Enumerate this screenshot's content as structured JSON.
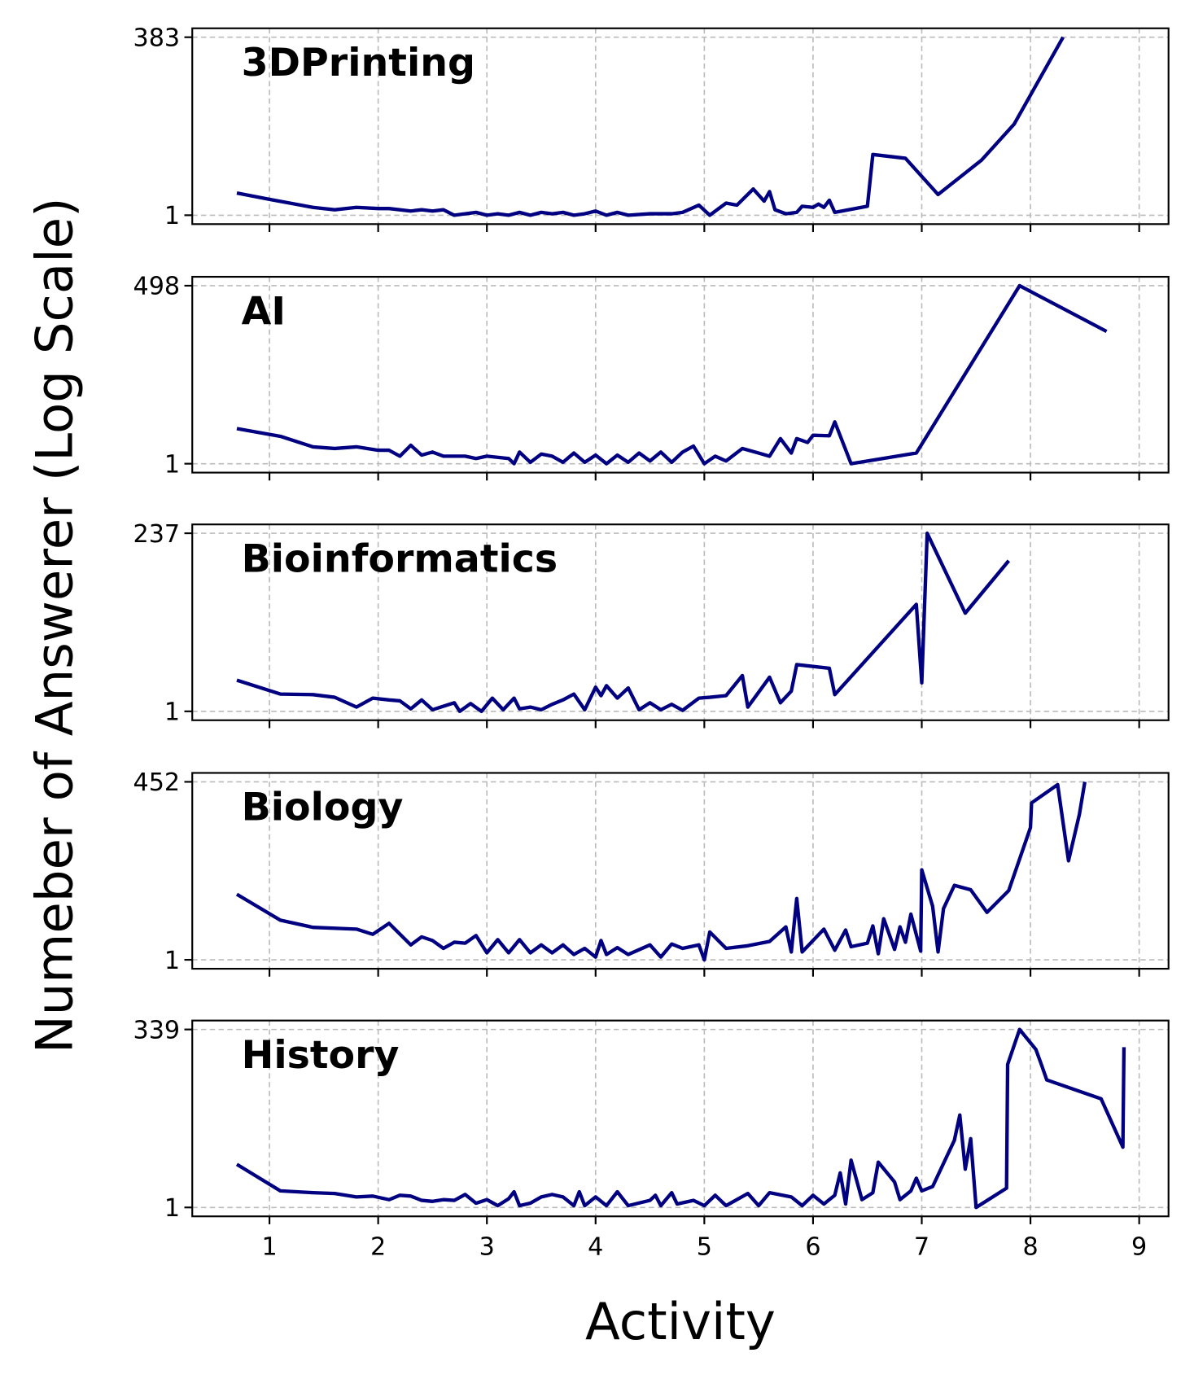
{
  "x_label": "Activity",
  "y_label": "Numeber of Answerer (Log Scale)",
  "chart_data": [
    {
      "type": "line",
      "title": "3DPrinting",
      "color": "#000080",
      "yscale": "log",
      "grid": true,
      "xlim": [
        0.29,
        9.27
      ],
      "ylim": [
        0.743,
        516
      ],
      "xticks": [
        1,
        2,
        3,
        4,
        5,
        6,
        7,
        8,
        9
      ],
      "yticks": [
        1,
        383
      ],
      "x": [
        0.7,
        1.0,
        1.4,
        1.6,
        1.8,
        2.0,
        2.1,
        2.3,
        2.4,
        2.5,
        2.6,
        2.7,
        2.8,
        2.9,
        3.0,
        3.1,
        3.2,
        3.3,
        3.4,
        3.5,
        3.6,
        3.7,
        3.8,
        3.9,
        4.0,
        4.1,
        4.2,
        4.3,
        4.5,
        4.7,
        4.8,
        4.95,
        5.05,
        5.2,
        5.3,
        5.45,
        5.55,
        5.6,
        5.65,
        5.75,
        5.85,
        5.9,
        6.0,
        6.05,
        6.1,
        6.15,
        6.2,
        6.5,
        6.55,
        6.85,
        7.15,
        7.55,
        7.85,
        8.3
      ],
      "values": [
        2.1,
        1.7,
        1.3,
        1.2,
        1.3,
        1.25,
        1.25,
        1.15,
        1.2,
        1.15,
        1.2,
        1.0,
        1.05,
        1.1,
        1.0,
        1.05,
        1.0,
        1.1,
        1.0,
        1.1,
        1.05,
        1.1,
        1.0,
        1.05,
        1.15,
        1.0,
        1.1,
        1.0,
        1.05,
        1.05,
        1.1,
        1.4,
        1.0,
        1.5,
        1.4,
        2.4,
        1.6,
        2.2,
        1.2,
        1.05,
        1.1,
        1.35,
        1.3,
        1.45,
        1.3,
        1.65,
        1.1,
        1.35,
        7.6,
        6.7,
        2.0,
        6.3,
        21,
        383
      ]
    },
    {
      "type": "line",
      "title": "AI",
      "color": "#000080",
      "yscale": "log",
      "grid": true,
      "xlim": [
        0.29,
        9.27
      ],
      "ylim": [
        0.733,
        679
      ],
      "xticks": [
        1,
        2,
        3,
        4,
        5,
        6,
        7,
        8,
        9
      ],
      "yticks": [
        1,
        498
      ],
      "x": [
        0.7,
        1.1,
        1.4,
        1.6,
        1.8,
        2.0,
        2.1,
        2.2,
        2.3,
        2.4,
        2.5,
        2.6,
        2.8,
        2.9,
        3.0,
        3.2,
        3.25,
        3.3,
        3.4,
        3.5,
        3.6,
        3.7,
        3.8,
        3.9,
        4.0,
        4.1,
        4.2,
        4.3,
        4.4,
        4.5,
        4.6,
        4.7,
        4.8,
        4.9,
        5.0,
        5.1,
        5.2,
        5.35,
        5.5,
        5.6,
        5.7,
        5.8,
        5.85,
        5.95,
        6.0,
        6.15,
        6.2,
        6.35,
        6.95,
        7.9,
        8.7
      ],
      "values": [
        3.4,
        2.6,
        1.8,
        1.7,
        1.8,
        1.6,
        1.6,
        1.3,
        1.9,
        1.35,
        1.5,
        1.3,
        1.3,
        1.2,
        1.3,
        1.2,
        1.0,
        1.5,
        1.05,
        1.4,
        1.3,
        1.05,
        1.45,
        1.05,
        1.35,
        1.0,
        1.35,
        1.05,
        1.45,
        1.1,
        1.5,
        1.05,
        1.5,
        1.85,
        1.0,
        1.3,
        1.1,
        1.7,
        1.45,
        1.3,
        2.4,
        1.45,
        2.4,
        2.1,
        2.7,
        2.65,
        4.3,
        1.0,
        1.45,
        498,
        101
      ]
    },
    {
      "type": "line",
      "title": "Bioinformatics",
      "color": "#000080",
      "yscale": "log",
      "grid": true,
      "xlim": [
        0.29,
        9.27
      ],
      "ylim": [
        0.761,
        311
      ],
      "xticks": [
        1,
        2,
        3,
        4,
        5,
        6,
        7,
        8,
        9
      ],
      "yticks": [
        1,
        237
      ],
      "x": [
        0.7,
        1.1,
        1.4,
        1.6,
        1.8,
        1.95,
        2.1,
        2.2,
        2.3,
        2.4,
        2.5,
        2.6,
        2.7,
        2.75,
        2.85,
        2.95,
        3.05,
        3.15,
        3.25,
        3.3,
        3.4,
        3.5,
        3.6,
        3.7,
        3.8,
        3.9,
        4.0,
        4.05,
        4.1,
        4.2,
        4.3,
        4.4,
        4.5,
        4.6,
        4.7,
        4.8,
        4.95,
        5.05,
        5.2,
        5.35,
        5.4,
        5.5,
        5.6,
        5.7,
        5.8,
        5.85,
        6.15,
        6.2,
        6.95,
        7.0,
        7.05,
        7.4,
        7.8
      ],
      "values": [
        2.6,
        1.7,
        1.67,
        1.54,
        1.14,
        1.5,
        1.42,
        1.38,
        1.08,
        1.42,
        1.05,
        1.17,
        1.3,
        1.0,
        1.27,
        1.0,
        1.5,
        1.05,
        1.5,
        1.08,
        1.14,
        1.05,
        1.24,
        1.42,
        1.7,
        1.05,
        2.1,
        1.62,
        2.2,
        1.5,
        2.05,
        1.05,
        1.3,
        1.05,
        1.24,
        1.03,
        1.5,
        1.54,
        1.62,
        3.0,
        1.14,
        1.8,
        2.85,
        1.3,
        1.86,
        4.2,
        3.75,
        1.67,
        26.7,
        2.4,
        237,
        20.4,
        102
      ]
    },
    {
      "type": "line",
      "title": "Biology",
      "color": "#000080",
      "yscale": "log",
      "grid": true,
      "xlim": [
        0.29,
        9.27
      ],
      "ylim": [
        0.736,
        614
      ],
      "xticks": [
        1,
        2,
        3,
        4,
        5,
        6,
        7,
        8,
        9
      ],
      "yticks": [
        1,
        452
      ],
      "x": [
        0.7,
        1.1,
        1.4,
        1.8,
        1.95,
        2.1,
        2.3,
        2.4,
        2.5,
        2.6,
        2.7,
        2.8,
        2.9,
        3.0,
        3.1,
        3.2,
        3.3,
        3.4,
        3.5,
        3.6,
        3.7,
        3.8,
        3.9,
        4.0,
        4.05,
        4.1,
        4.2,
        4.3,
        4.5,
        4.6,
        4.7,
        4.8,
        4.95,
        5.0,
        5.05,
        5.2,
        5.4,
        5.6,
        5.75,
        5.8,
        5.85,
        5.9,
        6.1,
        6.2,
        6.3,
        6.35,
        6.5,
        6.55,
        6.6,
        6.65,
        6.75,
        6.8,
        6.85,
        6.9,
        6.99,
        7.0,
        7.1,
        7.15,
        7.2,
        7.3,
        7.45,
        7.6,
        7.8,
        8.0,
        8.01,
        8.25,
        8.35,
        8.45,
        8.5
      ],
      "values": [
        9.5,
        3.9,
        3.05,
        2.87,
        2.4,
        3.5,
        1.67,
        2.2,
        1.94,
        1.48,
        1.83,
        1.77,
        2.3,
        1.27,
        2.0,
        1.27,
        2.0,
        1.27,
        1.67,
        1.27,
        1.67,
        1.2,
        1.48,
        1.1,
        1.94,
        1.2,
        1.52,
        1.2,
        1.67,
        1.1,
        1.72,
        1.48,
        1.67,
        1.0,
        2.6,
        1.48,
        1.62,
        1.88,
        3.1,
        1.31,
        8.2,
        1.31,
        2.87,
        1.39,
        2.78,
        1.57,
        1.77,
        3.2,
        1.23,
        4.1,
        1.43,
        3.1,
        1.83,
        4.8,
        1.35,
        22,
        6.3,
        1.31,
        5.8,
        12.9,
        11.1,
        5.1,
        10.8,
        94,
        219,
        410,
        30,
        148,
        452
      ]
    },
    {
      "type": "line",
      "title": "History",
      "color": "#000080",
      "yscale": "log",
      "grid": true,
      "xlim": [
        0.29,
        9.27
      ],
      "ylim": [
        0.747,
        454
      ],
      "xticks": [
        1,
        2,
        3,
        4,
        5,
        6,
        7,
        8,
        9
      ],
      "yticks": [
        1,
        339
      ],
      "x": [
        0.7,
        1.1,
        1.4,
        1.6,
        1.8,
        1.95,
        2.1,
        2.2,
        2.3,
        2.4,
        2.5,
        2.6,
        2.7,
        2.8,
        2.9,
        3.0,
        3.1,
        3.2,
        3.25,
        3.3,
        3.4,
        3.5,
        3.6,
        3.7,
        3.8,
        3.85,
        3.9,
        4.0,
        4.1,
        4.2,
        4.3,
        4.5,
        4.55,
        4.6,
        4.7,
        4.75,
        4.9,
        5.0,
        5.1,
        5.2,
        5.4,
        5.5,
        5.6,
        5.8,
        5.9,
        6.0,
        6.1,
        6.2,
        6.25,
        6.3,
        6.35,
        6.45,
        6.55,
        6.6,
        6.75,
        6.8,
        6.9,
        6.95,
        7.0,
        7.1,
        7.3,
        7.35,
        7.4,
        7.45,
        7.5,
        7.78,
        7.79,
        7.9,
        8.05,
        8.1,
        8.15,
        8.65,
        8.85,
        8.86
      ],
      "values": [
        4.1,
        1.72,
        1.62,
        1.58,
        1.41,
        1.45,
        1.29,
        1.49,
        1.45,
        1.26,
        1.22,
        1.29,
        1.26,
        1.53,
        1.15,
        1.29,
        1.06,
        1.33,
        1.67,
        1.06,
        1.15,
        1.41,
        1.53,
        1.41,
        1.06,
        1.67,
        1.06,
        1.41,
        1.06,
        1.67,
        1.06,
        1.26,
        1.49,
        1.06,
        1.62,
        1.12,
        1.26,
        1.06,
        1.49,
        1.06,
        1.58,
        1.06,
        1.62,
        1.41,
        1.06,
        1.49,
        1.12,
        1.49,
        3.1,
        1.12,
        4.7,
        1.29,
        1.62,
        4.4,
        2.3,
        1.29,
        1.72,
        2.6,
        1.72,
        1.98,
        9.0,
        20.6,
        3.5,
        9.5,
        1.0,
        1.88,
        108,
        339,
        176,
        108,
        65,
        35,
        7.2,
        190
      ]
    }
  ]
}
